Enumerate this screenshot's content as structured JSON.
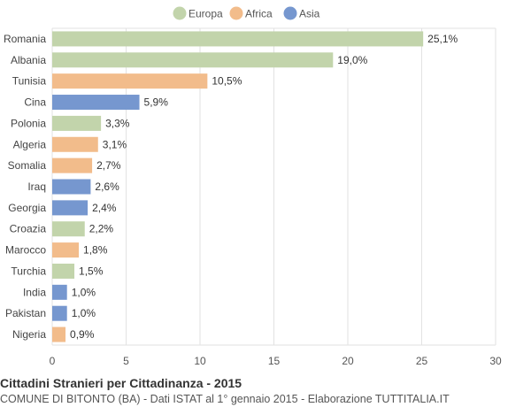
{
  "chart_data": {
    "type": "bar",
    "orientation": "horizontal",
    "title": "Cittadini Stranieri per Cittadinanza - 2015",
    "subtitle": "COMUNE DI BITONTO (BA) - Dati ISTAT al 1° gennaio 2015 - Elaborazione TUTTITALIA.IT",
    "xlim": [
      0,
      30
    ],
    "xticks": [
      0,
      5,
      10,
      15,
      20,
      25,
      30
    ],
    "grid": true,
    "legend_position": "top-center",
    "legend": [
      {
        "name": "Europa",
        "color": "#c2d4ab"
      },
      {
        "name": "Africa",
        "color": "#f2bc8b"
      },
      {
        "name": "Asia",
        "color": "#7697cf"
      }
    ],
    "categories": [
      "Romania",
      "Albania",
      "Tunisia",
      "Cina",
      "Polonia",
      "Algeria",
      "Somalia",
      "Iraq",
      "Georgia",
      "Croazia",
      "Marocco",
      "Turchia",
      "India",
      "Pakistan",
      "Nigeria"
    ],
    "values": [
      25.1,
      19.0,
      10.5,
      5.9,
      3.3,
      3.1,
      2.7,
      2.6,
      2.4,
      2.2,
      1.8,
      1.5,
      1.0,
      1.0,
      0.9
    ],
    "value_labels": [
      "25,1%",
      "19,0%",
      "10,5%",
      "5,9%",
      "3,3%",
      "3,1%",
      "2,7%",
      "2,6%",
      "2,4%",
      "2,2%",
      "1,8%",
      "1,5%",
      "1,0%",
      "1,0%",
      "0,9%"
    ],
    "groups": [
      "Europa",
      "Europa",
      "Africa",
      "Asia",
      "Europa",
      "Africa",
      "Africa",
      "Asia",
      "Asia",
      "Europa",
      "Africa",
      "Europa",
      "Asia",
      "Asia",
      "Africa"
    ]
  }
}
